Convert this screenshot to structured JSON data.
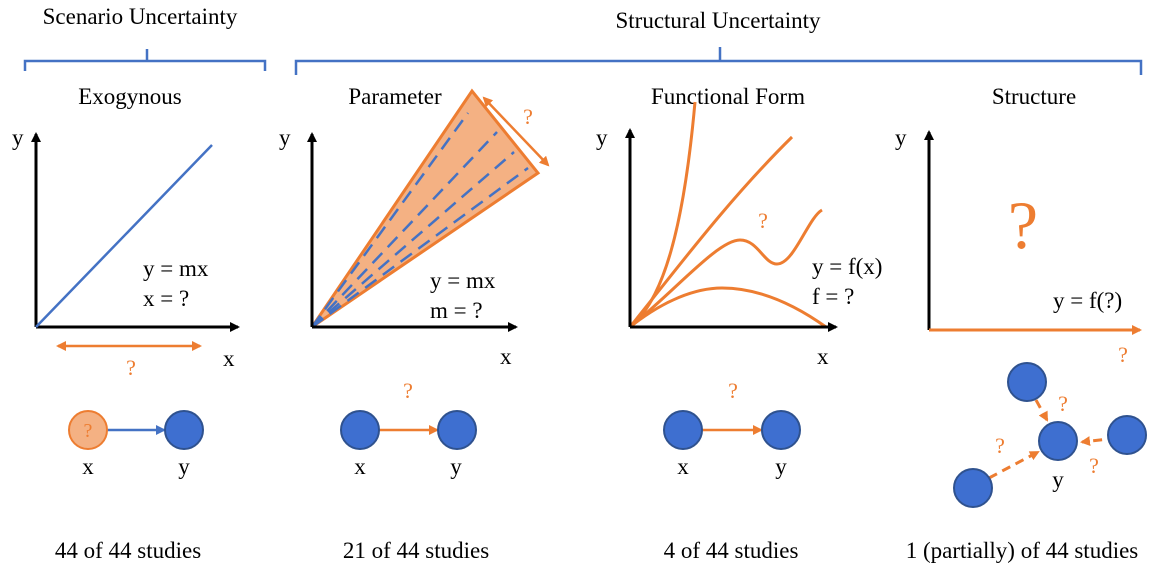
{
  "colors": {
    "blue": "#4472C4",
    "blue_node": "#3E6FD0",
    "blue_node_stroke": "#2F528F",
    "orange": "#ED7D31",
    "orange_fill": "#F4B183",
    "black": "#000000"
  },
  "header": {
    "scenario": "Scenario Uncertainty",
    "structural": "Structural Uncertainty"
  },
  "panels": {
    "exogenous": {
      "title": "Exogynous",
      "eq1": "y = mx",
      "eq2": "x = ?",
      "axis_x": "x",
      "axis_y": "y",
      "range_q": "?",
      "node_q": "?",
      "node_x": "x",
      "node_y": "y",
      "count": "44 of 44 studies"
    },
    "parameter": {
      "title": "Parameter",
      "eq1": "y = mx",
      "eq2": "m = ?",
      "axis_x": "x",
      "axis_y": "y",
      "range_q": "?",
      "edge_q": "?",
      "node_x": "x",
      "node_y": "y",
      "count": "21 of 44 studies"
    },
    "functional": {
      "title": "Functional Form",
      "eq1": "y = f(x)",
      "eq2": "f = ?",
      "axis_x": "x",
      "axis_y": "y",
      "curve_q": "?",
      "edge_q": "?",
      "node_x": "x",
      "node_y": "y",
      "count": "4 of 44 studies"
    },
    "structure": {
      "title": "Structure",
      "big_q": "?",
      "eq1": "y = f(?)",
      "axis_y": "y",
      "axis_q": "?",
      "edge_q1": "?",
      "edge_q2": "?",
      "edge_q3": "?",
      "node_y": "y",
      "count": "1 (partially) of 44 studies"
    }
  }
}
